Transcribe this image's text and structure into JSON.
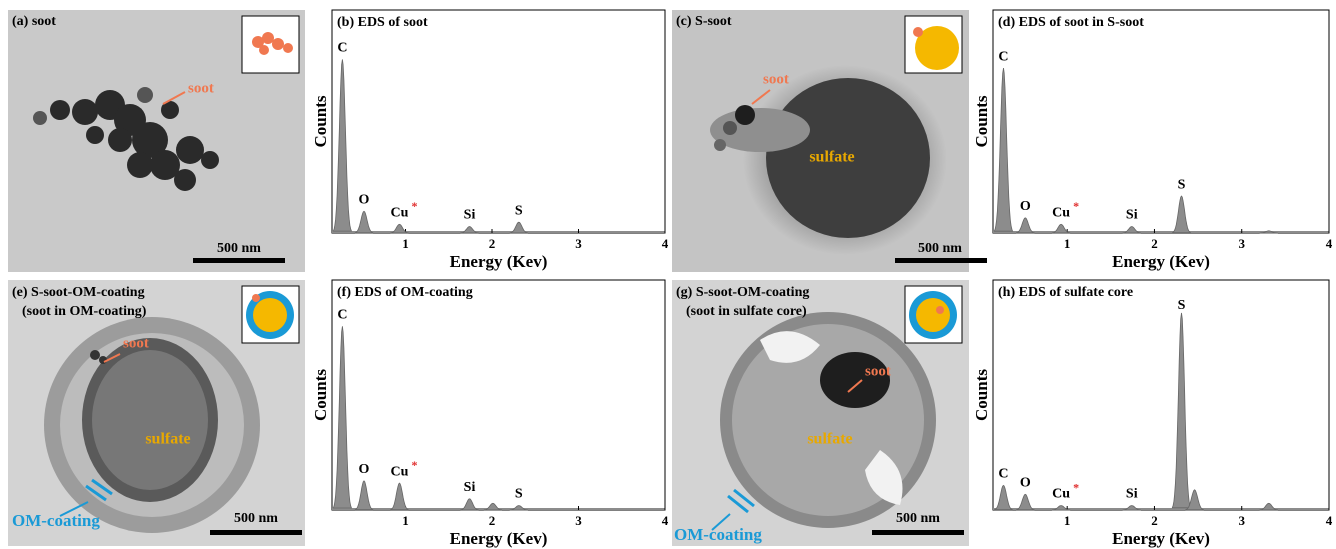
{
  "panels": [
    {
      "label": "(a) soot",
      "notes": [
        "soot"
      ],
      "scale": "500 nm"
    },
    {
      "label": "(c) S-soot",
      "notes": [
        "soot",
        "sulfate"
      ],
      "scale": "500 nm"
    },
    {
      "label": "(e) S-soot-OM-coating",
      "sublabel": "(soot in OM-coating)",
      "notes": [
        "soot",
        "sulfate",
        "OM-coating"
      ],
      "scale": "500 nm"
    },
    {
      "label": "(g) S-soot-OM-coating",
      "sublabel": "(soot in sulfate core)",
      "notes": [
        "soot",
        "sulfate",
        "OM-coating"
      ],
      "scale": "500 nm"
    }
  ],
  "chart_data": [
    {
      "type": "spectrum",
      "title": "(b) EDS of soot",
      "xlabel": "Energy (Kev)",
      "ylabel": "Counts",
      "color": "#8c8c8c",
      "cu_marker": "*",
      "x": [
        0.27,
        0.52,
        0.93,
        1.74,
        2.31
      ],
      "values": [
        80,
        10,
        4,
        3,
        5
      ],
      "peak_labels": [
        "C",
        "O",
        "Cu",
        "Si",
        "S"
      ],
      "xlim": [
        0.15,
        4
      ],
      "ylim": [
        0,
        100
      ],
      "xticks": [
        1,
        2,
        3,
        4
      ]
    },
    {
      "type": "spectrum",
      "title": "(d) EDS of soot in S-soot",
      "xlabel": "Energy (Kev)",
      "ylabel": "Counts",
      "color": "#8c8c8c",
      "cu_marker": "*",
      "x": [
        0.27,
        0.52,
        0.93,
        1.74,
        2.31,
        3.31
      ],
      "values": [
        76,
        7,
        4,
        3,
        17,
        1
      ],
      "peak_labels": [
        "C",
        "O",
        "Cu",
        "Si",
        "S",
        null
      ],
      "xlim": [
        0.15,
        4
      ],
      "ylim": [
        0,
        100
      ],
      "xticks": [
        1,
        2,
        3,
        4
      ]
    },
    {
      "type": "spectrum",
      "title": "(f) EDS of OM-coating",
      "xlabel": "Energy (Kev)",
      "ylabel": "Counts",
      "color": "#8c8c8c",
      "cu_marker": "*",
      "x": [
        0.27,
        0.52,
        0.93,
        1.74,
        2.01,
        2.31
      ],
      "values": [
        82,
        13,
        12,
        5,
        3,
        2
      ],
      "peak_labels": [
        "C",
        "O",
        "Cu",
        "Si",
        null,
        "S"
      ],
      "xlim": [
        0.15,
        4
      ],
      "ylim": [
        0,
        100
      ],
      "xticks": [
        1,
        2,
        3,
        4
      ]
    },
    {
      "type": "spectrum",
      "title": "(h)  EDS of sulfate core",
      "xlabel": "Energy (Kev)",
      "ylabel": "Counts",
      "color": "#8c8c8c",
      "cu_marker": "*",
      "x": [
        0.27,
        0.52,
        0.93,
        1.74,
        2.31,
        2.46,
        3.31
      ],
      "values": [
        11,
        7,
        2,
        2,
        88,
        9,
        3
      ],
      "peak_labels": [
        "C",
        "O",
        "Cu",
        "Si",
        "S",
        null,
        null
      ],
      "xlim": [
        0.15,
        4
      ],
      "ylim": [
        0,
        100
      ],
      "xticks": [
        1,
        2,
        3,
        4
      ]
    }
  ]
}
